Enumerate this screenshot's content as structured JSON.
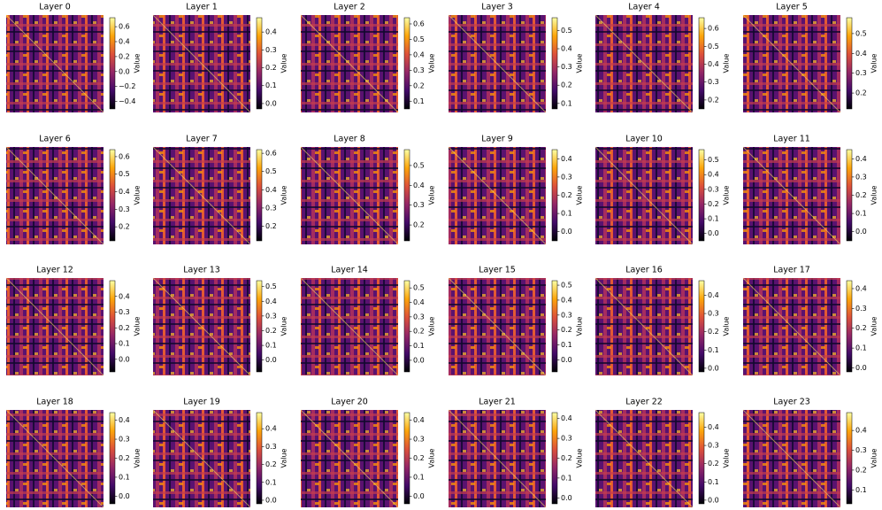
{
  "chart_data": [
    {
      "type": "heatmap",
      "title": "Layer 0",
      "colorbar_label": "Value",
      "clim": [
        -0.5,
        0.72
      ],
      "cticks": [
        {
          "value": -0.4,
          "label": "−0.4"
        },
        {
          "value": -0.2,
          "label": "−0.2"
        },
        {
          "value": 0,
          "label": "0.0"
        },
        0.2,
        0.4,
        0.6
      ]
    },
    {
      "type": "heatmap",
      "title": "Layer 1",
      "colorbar_label": "Value",
      "clim": [
        -0.03,
        0.48
      ],
      "cticks": [
        {
          "value": 0,
          "label": "0.0"
        },
        0.1,
        0.2,
        0.3,
        0.4
      ]
    },
    {
      "type": "heatmap",
      "title": "Layer 2",
      "colorbar_label": "Value",
      "clim": [
        0.05,
        0.64
      ],
      "cticks": [
        0.1,
        0.2,
        0.3,
        0.4,
        0.5,
        0.6
      ]
    },
    {
      "type": "heatmap",
      "title": "Layer 3",
      "colorbar_label": "Value",
      "clim": [
        0.07,
        0.57
      ],
      "cticks": [
        0.1,
        0.2,
        0.3,
        0.4,
        0.5
      ]
    },
    {
      "type": "heatmap",
      "title": "Layer 4",
      "colorbar_label": "Value",
      "clim": [
        0.15,
        0.66
      ],
      "cticks": [
        0.2,
        0.3,
        0.4,
        0.5,
        0.6
      ]
    },
    {
      "type": "heatmap",
      "title": "Layer 5",
      "colorbar_label": "Value",
      "clim": [
        0.12,
        0.58
      ],
      "cticks": [
        0.2,
        0.3,
        0.4,
        0.5
      ]
    },
    {
      "type": "heatmap",
      "title": "Layer 6",
      "colorbar_label": "Value",
      "clim": [
        0.12,
        0.64
      ],
      "cticks": [
        0.2,
        0.3,
        0.4,
        0.5,
        0.6
      ]
    },
    {
      "type": "heatmap",
      "title": "Layer 7",
      "colorbar_label": "Value",
      "clim": [
        0.12,
        0.62
      ],
      "cticks": [
        0.2,
        0.3,
        0.4,
        0.5,
        0.6
      ]
    },
    {
      "type": "heatmap",
      "title": "Layer 8",
      "colorbar_label": "Value",
      "clim": [
        0.12,
        0.58
      ],
      "cticks": [
        0.2,
        0.3,
        0.4,
        0.5
      ]
    },
    {
      "type": "heatmap",
      "title": "Layer 9",
      "colorbar_label": "Value",
      "clim": [
        -0.05,
        0.45
      ],
      "cticks": [
        {
          "value": 0,
          "label": "0.0"
        },
        0.1,
        0.2,
        0.3,
        0.4
      ]
    },
    {
      "type": "heatmap",
      "title": "Layer 10",
      "colorbar_label": "Value",
      "clim": [
        -0.05,
        0.57
      ],
      "cticks": [
        {
          "value": 0,
          "label": "0.0"
        },
        0.1,
        0.2,
        0.3,
        0.4,
        0.5
      ]
    },
    {
      "type": "heatmap",
      "title": "Layer 11",
      "colorbar_label": "Value",
      "clim": [
        -0.05,
        0.45
      ],
      "cticks": [
        {
          "value": 0,
          "label": "0.0"
        },
        0.1,
        0.2,
        0.3,
        0.4
      ]
    },
    {
      "type": "heatmap",
      "title": "Layer 12",
      "colorbar_label": "Value",
      "clim": [
        -0.08,
        0.5
      ],
      "cticks": [
        {
          "value": 0,
          "label": "0.0"
        },
        0.1,
        0.2,
        0.3,
        0.4
      ]
    },
    {
      "type": "heatmap",
      "title": "Layer 13",
      "colorbar_label": "Value",
      "clim": [
        -0.08,
        0.54
      ],
      "cticks": [
        {
          "value": 0,
          "label": "0.0"
        },
        0.1,
        0.2,
        0.3,
        0.4,
        0.5
      ]
    },
    {
      "type": "heatmap",
      "title": "Layer 14",
      "colorbar_label": "Value",
      "clim": [
        -0.08,
        0.55
      ],
      "cticks": [
        {
          "value": 0,
          "label": "0.0"
        },
        0.1,
        0.2,
        0.3,
        0.4,
        0.5
      ]
    },
    {
      "type": "heatmap",
      "title": "Layer 15",
      "colorbar_label": "Value",
      "clim": [
        -0.08,
        0.53
      ],
      "cticks": [
        {
          "value": 0,
          "label": "0.0"
        },
        0.1,
        0.2,
        0.3,
        0.4,
        0.5
      ]
    },
    {
      "type": "heatmap",
      "title": "Layer 16",
      "colorbar_label": "Value",
      "clim": [
        -0.02,
        0.48
      ],
      "cticks": [
        {
          "value": 0,
          "label": "0.0"
        },
        0.1,
        0.2,
        0.3,
        0.4
      ]
    },
    {
      "type": "heatmap",
      "title": "Layer 17",
      "colorbar_label": "Value",
      "clim": [
        -0.02,
        0.44
      ],
      "cticks": [
        {
          "value": 0,
          "label": "0.0"
        },
        0.1,
        0.2,
        0.3,
        0.4
      ]
    },
    {
      "type": "heatmap",
      "title": "Layer 18",
      "colorbar_label": "Value",
      "clim": [
        -0.04,
        0.44
      ],
      "cticks": [
        {
          "value": 0,
          "label": "0.0"
        },
        0.1,
        0.2,
        0.3,
        0.4
      ]
    },
    {
      "type": "heatmap",
      "title": "Layer 19",
      "colorbar_label": "Value",
      "clim": [
        -0.02,
        0.49
      ],
      "cticks": [
        {
          "value": 0,
          "label": "0.0"
        },
        0.1,
        0.2,
        0.3,
        0.4
      ]
    },
    {
      "type": "heatmap",
      "title": "Layer 20",
      "colorbar_label": "Value",
      "clim": [
        -0.04,
        0.44
      ],
      "cticks": [
        {
          "value": 0,
          "label": "0.0"
        },
        0.1,
        0.2,
        0.3,
        0.4
      ]
    },
    {
      "type": "heatmap",
      "title": "Layer 21",
      "colorbar_label": "Value",
      "clim": [
        -0.03,
        0.43
      ],
      "cticks": [
        {
          "value": 0,
          "label": "0.0"
        },
        0.1,
        0.2,
        0.3,
        0.4
      ]
    },
    {
      "type": "heatmap",
      "title": "Layer 22",
      "colorbar_label": "Value",
      "clim": [
        -0.02,
        0.48
      ],
      "cticks": [
        {
          "value": 0,
          "label": "0.0"
        },
        0.1,
        0.2,
        0.3,
        0.4
      ]
    },
    {
      "type": "heatmap",
      "title": "Layer 23",
      "colorbar_label": "Value",
      "clim": [
        0.03,
        0.49
      ],
      "cticks": [
        0.1,
        0.2,
        0.3,
        0.4
      ]
    }
  ]
}
